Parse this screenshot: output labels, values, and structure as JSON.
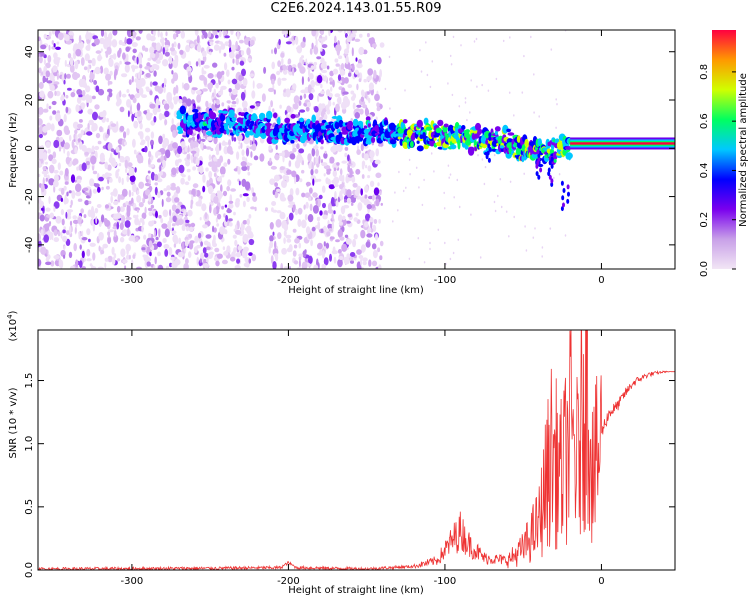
{
  "title": "C2E6.2024.143.01.55.R09",
  "chart_data": [
    {
      "type": "heatmap",
      "title": "",
      "xlabel": "Height of straight line (km)",
      "ylabel": "Frequency (Hz)",
      "xlim": [
        -360,
        47
      ],
      "ylim": [
        -50,
        49
      ],
      "x_ticks": [
        -300,
        -200,
        -100,
        0
      ],
      "y_ticks": [
        -40,
        -20,
        0,
        20,
        40
      ],
      "colorbar": {
        "label": "Normalized spectral amplitude",
        "range": [
          0.0,
          0.97
        ],
        "ticks": [
          "0.0",
          "0.2",
          "0.4",
          "0.6",
          "0.8"
        ],
        "colors": [
          "#f2e6f5",
          "#c8a0e8",
          "#7a00ee",
          "#0000ff",
          "#00c8ff",
          "#00ff60",
          "#d0ff00",
          "#ff9900",
          "#ff0040"
        ]
      },
      "noise_region_x": [
        -360,
        -140
      ],
      "ridge": [
        {
          "x": -270,
          "y": 11
        },
        {
          "x": -240,
          "y": 10
        },
        {
          "x": -200,
          "y": 8
        },
        {
          "x": -160,
          "y": 7
        },
        {
          "x": -120,
          "y": 6
        },
        {
          "x": -100,
          "y": 5
        },
        {
          "x": -80,
          "y": 4
        },
        {
          "x": -60,
          "y": 2
        },
        {
          "x": -40,
          "y": -2
        },
        {
          "x": -25,
          "y": 1
        },
        {
          "x": -10,
          "y": 2
        },
        {
          "x": 0,
          "y": 2
        },
        {
          "x": 20,
          "y": 2
        },
        {
          "x": 47,
          "y": 2
        }
      ]
    },
    {
      "type": "line",
      "title": "",
      "xlabel": "Height of straight line (km)",
      "ylabel": "SNR (10 * v/v)",
      "y_multiplier": "(x10^4)",
      "xlim": [
        -360,
        47
      ],
      "ylim": [
        0,
        1.9
      ],
      "x_ticks": [
        -300,
        -200,
        -100,
        0
      ],
      "y_ticks": [
        0.0,
        0.5,
        1.0,
        1.5
      ],
      "series": [
        {
          "color": "#ee3333",
          "points": [
            {
              "x": -360,
              "y": 0.01
            },
            {
              "x": -300,
              "y": 0.012
            },
            {
              "x": -250,
              "y": 0.015
            },
            {
              "x": -205,
              "y": 0.02
            },
            {
              "x": -200,
              "y": 0.06
            },
            {
              "x": -195,
              "y": 0.02
            },
            {
              "x": -150,
              "y": 0.01
            },
            {
              "x": -120,
              "y": 0.03
            },
            {
              "x": -105,
              "y": 0.08
            },
            {
              "x": -95,
              "y": 0.25
            },
            {
              "x": -90,
              "y": 0.33
            },
            {
              "x": -85,
              "y": 0.22
            },
            {
              "x": -75,
              "y": 0.1
            },
            {
              "x": -60,
              "y": 0.08
            },
            {
              "x": -50,
              "y": 0.18
            },
            {
              "x": -40,
              "y": 0.4
            },
            {
              "x": -32,
              "y": 1.0
            },
            {
              "x": -25,
              "y": 0.8
            },
            {
              "x": -20,
              "y": 1.2
            },
            {
              "x": -15,
              "y": 0.9
            },
            {
              "x": -10,
              "y": 1.85
            },
            {
              "x": -5,
              "y": 0.8
            },
            {
              "x": 0,
              "y": 1.1
            },
            {
              "x": 5,
              "y": 1.25
            },
            {
              "x": 10,
              "y": 1.3
            },
            {
              "x": 15,
              "y": 1.4
            },
            {
              "x": 20,
              "y": 1.48
            },
            {
              "x": 25,
              "y": 1.52
            },
            {
              "x": 30,
              "y": 1.55
            },
            {
              "x": 35,
              "y": 1.56
            },
            {
              "x": 40,
              "y": 1.57
            },
            {
              "x": 47,
              "y": 1.57
            }
          ]
        }
      ]
    }
  ]
}
